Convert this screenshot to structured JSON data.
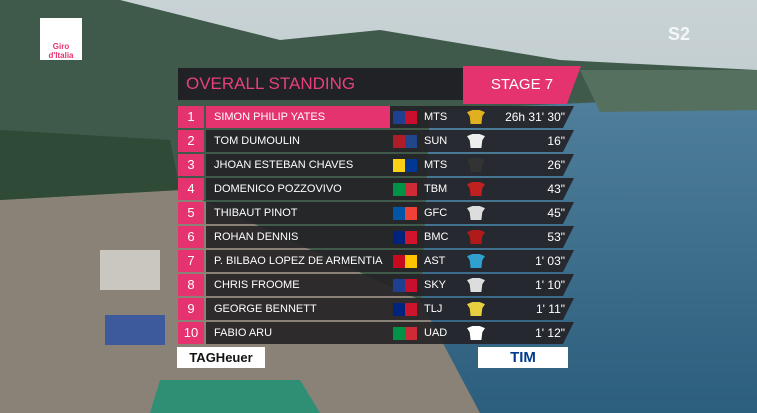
{
  "logos": {
    "giro": "Giro d'Italia",
    "channel": "S2",
    "tag_heuer": "TAGHeuer",
    "tim": "TIM"
  },
  "header": {
    "title": "OVERALL STANDING",
    "stage": "STAGE 7"
  },
  "table": {
    "rows": [
      [
        "1",
        "SIMON PHILIP YATES",
        "MTS",
        "26h 31' 30\""
      ],
      [
        "2",
        "TOM DUMOULIN",
        "SUN",
        "16\""
      ],
      [
        "3",
        "JHOAN ESTEBAN CHAVES",
        "MTS",
        "26\""
      ],
      [
        "4",
        "DOMENICO POZZOVIVO",
        "TBM",
        "43\""
      ],
      [
        "5",
        "THIBAUT PINOT",
        "GFC",
        "45\""
      ],
      [
        "6",
        "ROHAN DENNIS",
        "BMC",
        "53\""
      ],
      [
        "7",
        "P. BILBAO LOPEZ DE ARMENTIA",
        "AST",
        "1' 03\""
      ],
      [
        "8",
        "CHRIS FROOME",
        "SKY",
        "1' 10\""
      ],
      [
        "9",
        "GEORGE BENNETT",
        "TLJ",
        "1' 11\""
      ],
      [
        "10",
        "FABIO ARU",
        "UAD",
        "1' 12\""
      ]
    ]
  }
}
